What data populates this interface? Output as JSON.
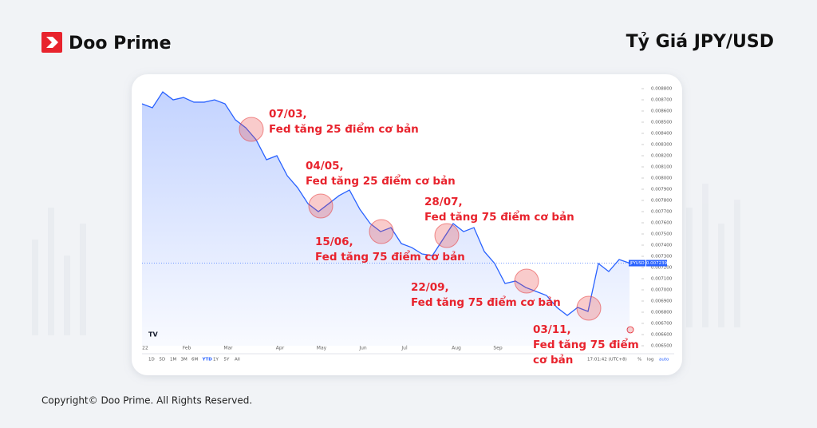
{
  "header": {
    "brand": "Doo Prime",
    "title": "Tỷ Giá JPY/USD"
  },
  "footer": {
    "copyright": "Copyright© Doo Prime. All Rights Reserved."
  },
  "toolbar": {
    "ranges": [
      "1D",
      "5D",
      "1M",
      "3M",
      "6M",
      "YTD",
      "1Y",
      "5Y",
      "All"
    ],
    "active": "YTD",
    "time": "17:01:42 (UTC+8)",
    "options": [
      "%",
      "log",
      "auto"
    ]
  },
  "chart_data": {
    "type": "line",
    "categories": [
      "22",
      null,
      null,
      null,
      "Feb",
      null,
      null,
      null,
      "Mar",
      null,
      null,
      null,
      null,
      "Apr",
      null,
      null,
      null,
      "May",
      null,
      null,
      null,
      "Jun",
      null,
      null,
      null,
      "Jul",
      null,
      null,
      null,
      null,
      "Aug",
      null,
      null,
      null,
      "Sep",
      null,
      null,
      null,
      null,
      null,
      null,
      null,
      null,
      null,
      null,
      null,
      null,
      null
    ],
    "series": [
      {
        "name": "JPYUSD",
        "color": "#2962ff",
        "values": [
          0.008664,
          0.008629,
          0.008771,
          0.0087,
          0.008721,
          0.008679,
          0.008679,
          0.0087,
          0.008664,
          0.008521,
          0.00845,
          0.008343,
          0.008164,
          0.0082,
          0.008021,
          0.007914,
          0.007771,
          0.0077,
          0.007771,
          0.007843,
          0.007893,
          0.007721,
          0.007593,
          0.007521,
          0.007557,
          0.007414,
          0.007379,
          0.007321,
          0.007307,
          0.00745,
          0.007593,
          0.007521,
          0.007557,
          0.007343,
          0.007236,
          0.007057,
          0.007079,
          0.007021,
          0.006986,
          0.00695,
          0.006843,
          0.006771,
          0.006843,
          0.006807,
          0.007236,
          0.007164,
          0.007271,
          0.007239
        ]
      }
    ],
    "price_tag": {
      "value": 0.007239,
      "label": "0.007239"
    },
    "ylim": [
      0.0065,
      0.00885
    ],
    "yticks": [
      {
        "value": 0.0065,
        "label": "0.006500"
      },
      {
        "value": 0.0066,
        "label": "0.006600"
      },
      {
        "value": 0.0067,
        "label": "0.006700"
      },
      {
        "value": 0.0068,
        "label": "0.006800"
      },
      {
        "value": 0.0069,
        "label": "0.006900"
      },
      {
        "value": 0.007,
        "label": "0.007000"
      },
      {
        "value": 0.0071,
        "label": "0.007100"
      },
      {
        "value": 0.0072,
        "label": "0.007200"
      },
      {
        "value": 0.0073,
        "label": "0.007300"
      },
      {
        "value": 0.0074,
        "label": "0.007400"
      },
      {
        "value": 0.0075,
        "label": "0.007500"
      },
      {
        "value": 0.0076,
        "label": "0.007600"
      },
      {
        "value": 0.0077,
        "label": "0.007700"
      },
      {
        "value": 0.0078,
        "label": "0.007800"
      },
      {
        "value": 0.0079,
        "label": "0.007900"
      },
      {
        "value": 0.008,
        "label": "0.008000"
      },
      {
        "value": 0.0081,
        "label": "0.008100"
      },
      {
        "value": 0.0082,
        "label": "0.008200"
      },
      {
        "value": 0.0083,
        "label": "0.008300"
      },
      {
        "value": 0.0084,
        "label": "0.008400"
      },
      {
        "value": 0.0085,
        "label": "0.008500"
      },
      {
        "value": 0.0086,
        "label": "0.008600"
      },
      {
        "value": 0.0087,
        "label": "0.008700"
      },
      {
        "value": 0.0088,
        "label": "0.008800"
      }
    ],
    "annotations": [
      {
        "lines": [
          "07/03,",
          "Fed tăng 25 điểm cơ bản"
        ]
      },
      {
        "lines": [
          "04/05,",
          "Fed tăng 25 điểm cơ bản"
        ]
      },
      {
        "lines": [
          "15/06,",
          "Fed tăng 75 điểm cơ bản"
        ]
      },
      {
        "lines": [
          "28/07,",
          "Fed tăng 75 điểm cơ bản"
        ]
      },
      {
        "lines": [
          "22/09,",
          "Fed tăng 75 điểm cơ bản"
        ]
      },
      {
        "lines": [
          "03/11,",
          "Fed tăng 75 điểm",
          "cơ bản"
        ]
      }
    ]
  }
}
